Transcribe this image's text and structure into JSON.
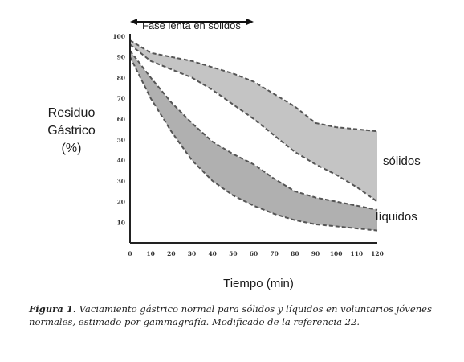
{
  "chart_data": {
    "type": "area",
    "title": "",
    "ylabel_lines": [
      "Residuo",
      "Gástrico",
      "(%)"
    ],
    "xlabel": "Tiempo (min)",
    "x_ticks": [
      "0",
      "10",
      "20",
      "30",
      "40",
      "50",
      "60",
      "70",
      "80",
      "90",
      "100",
      "110",
      "120"
    ],
    "y_ticks": [
      "10",
      "20",
      "30",
      "40",
      "50",
      "60",
      "70",
      "80",
      "90",
      "100"
    ],
    "xlim": [
      0,
      120
    ],
    "ylim": [
      0,
      100
    ],
    "grid": false,
    "annotation": {
      "text": "Fase lenta en sólidos",
      "x_range": [
        0,
        60
      ],
      "y": 107
    },
    "series": [
      {
        "name": "sólidos",
        "color": "#c4c4c4",
        "x": [
          0,
          10,
          20,
          30,
          40,
          50,
          60,
          70,
          80,
          90,
          100,
          110,
          120
        ],
        "upper": [
          98,
          92,
          90,
          88,
          85,
          82,
          78,
          72,
          66,
          58,
          56,
          55,
          54
        ],
        "lower": [
          96,
          88,
          84,
          80,
          74,
          67,
          60,
          52,
          44,
          38,
          33,
          27,
          20
        ]
      },
      {
        "name": "líquidos",
        "color": "#b0b0b0",
        "x": [
          0,
          10,
          20,
          30,
          40,
          50,
          60,
          70,
          80,
          90,
          100,
          110,
          120
        ],
        "upper": [
          93,
          80,
          68,
          58,
          49,
          43,
          38,
          31,
          25,
          22,
          20,
          18,
          16
        ],
        "lower": [
          90,
          70,
          54,
          40,
          30,
          23,
          18,
          14,
          11,
          9,
          8,
          7,
          6
        ]
      }
    ]
  },
  "caption": {
    "label": "Figura 1.",
    "text": " Vaciamiento gástrico normal para sólidos y líquidos en voluntarios jóvenes normales, estimado por gammagrafía. Modificado de la referencia 22."
  }
}
